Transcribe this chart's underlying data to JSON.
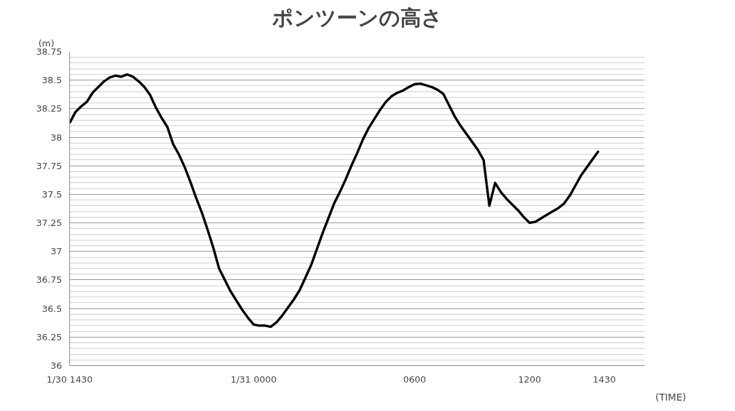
{
  "chart_data": {
    "type": "line",
    "title": "ポンツーンの高さ",
    "ylabel": "(m)",
    "xlabel": "(TIME)",
    "categories": [
      "1/30 1430",
      null,
      null,
      null,
      null,
      null,
      null,
      null,
      null,
      null,
      null,
      null,
      null,
      null,
      null,
      null,
      null,
      null,
      null,
      null,
      null,
      null,
      null,
      null,
      null,
      null,
      null,
      null,
      null,
      null,
      null,
      null,
      "1/31 0000",
      null,
      null,
      null,
      null,
      null,
      null,
      null,
      null,
      null,
      null,
      null,
      null,
      null,
      null,
      null,
      null,
      null,
      null,
      null,
      null,
      null,
      null,
      null,
      null,
      null,
      null,
      null,
      "0600",
      null,
      null,
      null,
      null,
      null,
      null,
      null,
      null,
      null,
      null,
      null,
      null,
      null,
      null,
      null,
      null,
      null,
      null,
      null,
      "1200",
      null,
      null,
      null,
      null,
      null,
      null,
      null,
      null,
      null,
      null,
      null,
      null,
      "1430",
      null,
      null,
      null,
      null,
      null,
      null,
      null
    ],
    "series": [
      {
        "color": "#000000",
        "values": [
          38.125,
          38.22,
          38.27,
          38.31,
          38.39,
          38.44,
          38.49,
          38.525,
          38.54,
          38.53,
          38.55,
          38.53,
          38.49,
          38.44,
          38.37,
          38.26,
          38.17,
          38.09,
          37.94,
          37.85,
          37.74,
          37.61,
          37.47,
          37.34,
          37.19,
          37.03,
          36.85,
          36.75,
          36.65,
          36.57,
          36.49,
          36.42,
          36.36,
          36.35,
          36.35,
          36.34,
          36.38,
          36.44,
          36.51,
          36.58,
          36.66,
          36.77,
          36.88,
          37.02,
          37.16,
          37.29,
          37.42,
          37.52,
          37.63,
          37.75,
          37.86,
          37.98,
          38.08,
          38.16,
          38.24,
          38.31,
          38.36,
          38.39,
          38.41,
          38.44,
          38.465,
          38.47,
          38.455,
          38.44,
          38.415,
          38.38,
          38.28,
          38.18,
          38.1,
          38.03,
          37.96,
          37.89,
          37.8,
          37.4,
          37.6,
          37.52,
          37.46,
          37.41,
          37.36,
          37.3,
          37.25,
          37.26,
          37.29,
          37.32,
          37.35,
          37.38,
          37.42,
          37.49,
          37.58,
          37.67,
          37.74,
          37.81,
          37.88,
          null,
          null,
          null,
          null,
          null,
          null,
          null,
          null
        ]
      }
    ],
    "ylim": [
      36,
      38.75
    ],
    "yticks": [
      36,
      36.25,
      36.5,
      36.75,
      37,
      37.25,
      37.5,
      37.75,
      38,
      38.25,
      38.5,
      38.75
    ],
    "grid": "y",
    "marker": "none",
    "line_style": "solid"
  }
}
